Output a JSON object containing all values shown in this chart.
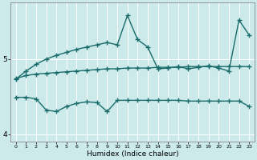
{
  "xlabel": "Humidex (Indice chaleur)",
  "x": [
    0,
    1,
    2,
    3,
    4,
    5,
    6,
    7,
    8,
    9,
    10,
    11,
    12,
    13,
    14,
    15,
    16,
    17,
    18,
    19,
    20,
    21,
    22,
    23
  ],
  "line1": [
    4.73,
    4.84,
    4.93,
    5.0,
    5.05,
    5.09,
    5.13,
    5.16,
    5.19,
    5.22,
    5.19,
    5.58,
    5.26,
    5.16,
    4.87,
    4.88,
    4.9,
    4.87,
    4.89,
    4.91,
    4.88,
    4.84,
    5.52,
    5.32
  ],
  "line2": [
    4.74,
    4.78,
    4.8,
    4.81,
    4.82,
    4.83,
    4.84,
    4.85,
    4.86,
    4.87,
    4.87,
    4.88,
    4.88,
    4.88,
    4.89,
    4.89,
    4.89,
    4.9,
    4.9,
    4.9,
    4.9,
    4.9,
    4.9,
    4.9
  ],
  "line3": [
    4.49,
    4.49,
    4.47,
    4.32,
    4.3,
    4.37,
    4.41,
    4.43,
    4.42,
    4.3,
    4.45,
    4.45,
    4.45,
    4.45,
    4.45,
    4.45,
    4.45,
    4.44,
    4.44,
    4.44,
    4.44,
    4.44,
    4.44,
    4.37
  ],
  "line_color": "#1a6b6b",
  "bg_color": "#cceaea",
  "grid_color": "#ffffff",
  "ylim": [
    3.9,
    5.75
  ],
  "yticks": [
    4,
    5
  ],
  "xlim": [
    -0.5,
    23.5
  ],
  "marker": "+",
  "markersize": 4,
  "linewidth": 1.0
}
